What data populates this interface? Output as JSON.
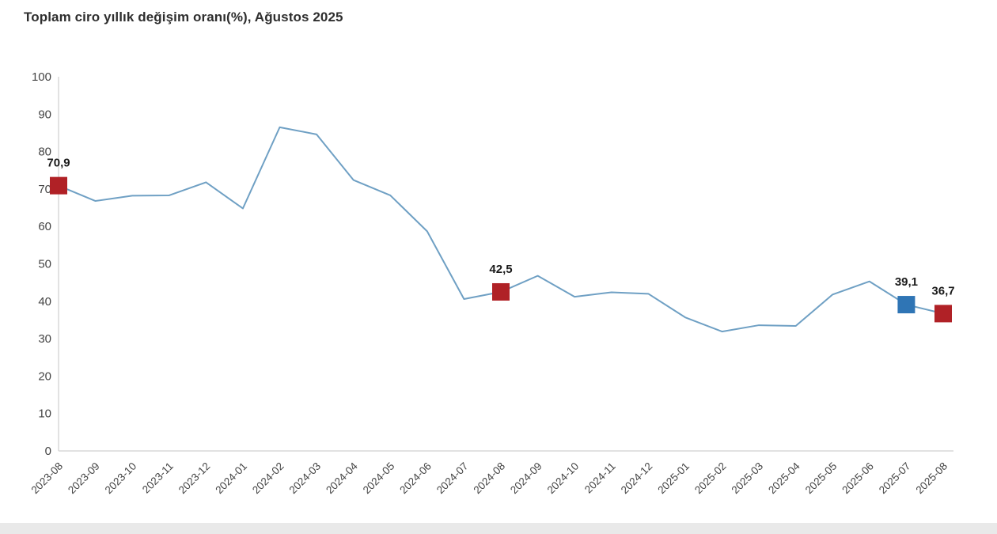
{
  "header": {
    "title": "Toplam ciro yıllık değişim oranı(%), Ağustos 2025"
  },
  "chart_data": {
    "type": "line",
    "title": "Toplam ciro yıllık değişim oranı(%), Ağustos 2025",
    "categories": [
      "2023-08",
      "2023-09",
      "2023-10",
      "2023-11",
      "2023-12",
      "2024-01",
      "2024-02",
      "2024-03",
      "2024-04",
      "2024-05",
      "2024-06",
      "2024-07",
      "2024-08",
      "2024-09",
      "2024-10",
      "2024-11",
      "2024-12",
      "2025-01",
      "2025-02",
      "2025-03",
      "2025-04",
      "2025-05",
      "2025-06",
      "2025-07",
      "2025-08"
    ],
    "values": [
      70.9,
      66.8,
      68.2,
      68.3,
      71.8,
      64.8,
      86.5,
      84.6,
      72.4,
      68.3,
      58.7,
      40.6,
      42.5,
      46.8,
      41.2,
      42.4,
      42.0,
      35.7,
      31.9,
      33.6,
      33.4,
      41.8,
      45.3,
      39.1,
      36.7
    ],
    "xlabel": "",
    "ylabel": "",
    "ylim": [
      0,
      100
    ],
    "yticks": [
      0,
      10,
      20,
      30,
      40,
      50,
      60,
      70,
      80,
      90,
      100
    ],
    "grid": false,
    "legend": "none",
    "line_color": "#6FA0C4",
    "axis_color": "#d9d9d9",
    "tick_text_color": "#444444",
    "annotation_text_color": "#1a1a1a",
    "annotated_points": [
      {
        "category": "2023-08",
        "value": 70.9,
        "label": "70,9",
        "marker_color": "#B02126"
      },
      {
        "category": "2024-08",
        "value": 42.5,
        "label": "42,5",
        "marker_color": "#B02126"
      },
      {
        "category": "2025-07",
        "value": 39.1,
        "label": "39,1",
        "marker_color": "#2F75B5"
      },
      {
        "category": "2025-08",
        "value": 36.7,
        "label": "36,7",
        "marker_color": "#B02126"
      }
    ]
  },
  "footer": {
    "divider_color": "#e9e9e9"
  }
}
